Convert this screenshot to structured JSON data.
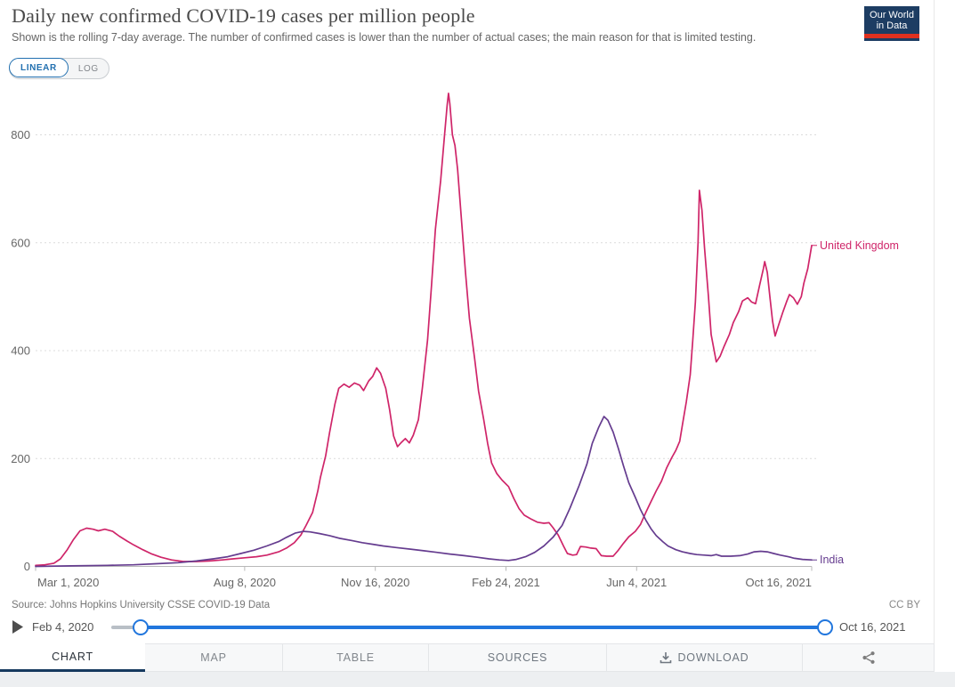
{
  "header": {
    "title": "Daily new confirmed COVID-19 cases per million people",
    "subtitle": "Shown is the rolling 7-day average. The number of confirmed cases is lower than the number of actual cases; the main reason for that is limited testing.",
    "logo": {
      "line1": "Our World",
      "line2": "in Data"
    }
  },
  "controls": {
    "linear_label": "LINEAR",
    "log_label": "LOG"
  },
  "chart_data": {
    "type": "line",
    "title": "Daily new confirmed COVID-19 cases per million people",
    "xlabel": "",
    "ylabel": "",
    "x_domain_days": [
      0,
      594
    ],
    "x_domain_dates": [
      "Mar 1, 2020",
      "Oct 16, 2021"
    ],
    "ylim": [
      0,
      900
    ],
    "grid": "horizontal-dotted",
    "legend_position": "right-end-labels",
    "y_ticks": [
      0,
      200,
      400,
      600,
      800
    ],
    "x_ticks": [
      {
        "label": "Mar 1, 2020",
        "day": 0,
        "align": "start"
      },
      {
        "label": "Aug 8, 2020",
        "day": 160,
        "align": "middle"
      },
      {
        "label": "Nov 16, 2020",
        "day": 260,
        "align": "middle"
      },
      {
        "label": "Feb 24, 2021",
        "day": 360,
        "align": "middle"
      },
      {
        "label": "Jun 4, 2021",
        "day": 460,
        "align": "middle"
      },
      {
        "label": "Oct 16, 2021",
        "day": 594,
        "align": "end"
      }
    ],
    "series": [
      {
        "name": "United Kingdom",
        "color": "#cf2569",
        "points": [
          [
            0,
            2
          ],
          [
            7,
            3
          ],
          [
            14,
            6
          ],
          [
            19,
            14
          ],
          [
            24,
            30
          ],
          [
            29,
            50
          ],
          [
            34,
            66
          ],
          [
            39,
            71
          ],
          [
            44,
            69
          ],
          [
            48,
            66
          ],
          [
            53,
            69
          ],
          [
            59,
            65
          ],
          [
            64,
            56
          ],
          [
            70,
            47
          ],
          [
            75,
            40
          ],
          [
            82,
            31
          ],
          [
            89,
            23
          ],
          [
            96,
            17
          ],
          [
            104,
            12
          ],
          [
            113,
            9
          ],
          [
            123,
            9
          ],
          [
            133,
            10
          ],
          [
            143,
            12
          ],
          [
            151,
            14
          ],
          [
            160,
            16
          ],
          [
            169,
            18
          ],
          [
            177,
            21
          ],
          [
            186,
            27
          ],
          [
            192,
            34
          ],
          [
            198,
            44
          ],
          [
            203,
            58
          ],
          [
            207,
            76
          ],
          [
            212,
            100
          ],
          [
            216,
            140
          ],
          [
            218,
            165
          ],
          [
            222,
            205
          ],
          [
            225,
            248
          ],
          [
            229,
            300
          ],
          [
            232,
            330
          ],
          [
            236,
            338
          ],
          [
            240,
            332
          ],
          [
            244,
            340
          ],
          [
            248,
            336
          ],
          [
            251,
            326
          ],
          [
            255,
            344
          ],
          [
            258,
            352
          ],
          [
            261,
            368
          ],
          [
            264,
            358
          ],
          [
            268,
            330
          ],
          [
            271,
            290
          ],
          [
            274,
            242
          ],
          [
            277,
            222
          ],
          [
            280,
            230
          ],
          [
            283,
            237
          ],
          [
            286,
            229
          ],
          [
            289,
            243
          ],
          [
            293,
            272
          ],
          [
            296,
            330
          ],
          [
            300,
            420
          ],
          [
            303,
            520
          ],
          [
            306,
            625
          ],
          [
            310,
            715
          ],
          [
            313,
            800
          ],
          [
            315,
            855
          ],
          [
            316,
            877
          ],
          [
            317,
            858
          ],
          [
            319,
            800
          ],
          [
            321,
            780
          ],
          [
            323,
            735
          ],
          [
            326,
            640
          ],
          [
            329,
            545
          ],
          [
            332,
            460
          ],
          [
            336,
            385
          ],
          [
            339,
            325
          ],
          [
            343,
            272
          ],
          [
            346,
            228
          ],
          [
            349,
            192
          ],
          [
            353,
            172
          ],
          [
            357,
            160
          ],
          [
            362,
            148
          ],
          [
            366,
            126
          ],
          [
            370,
            107
          ],
          [
            374,
            95
          ],
          [
            379,
            88
          ],
          [
            384,
            82
          ],
          [
            389,
            80
          ],
          [
            393,
            81
          ],
          [
            396,
            72
          ],
          [
            400,
            58
          ],
          [
            404,
            38
          ],
          [
            407,
            24
          ],
          [
            411,
            21
          ],
          [
            414,
            22
          ],
          [
            417,
            37
          ],
          [
            421,
            36
          ],
          [
            425,
            34
          ],
          [
            429,
            33
          ],
          [
            433,
            20
          ],
          [
            437,
            19
          ],
          [
            442,
            19
          ],
          [
            446,
            30
          ],
          [
            450,
            43
          ],
          [
            454,
            55
          ],
          [
            459,
            65
          ],
          [
            463,
            78
          ],
          [
            467,
            100
          ],
          [
            471,
            120
          ],
          [
            475,
            140
          ],
          [
            479,
            158
          ],
          [
            483,
            183
          ],
          [
            487,
            202
          ],
          [
            490,
            215
          ],
          [
            493,
            232
          ],
          [
            495,
            262
          ],
          [
            498,
            305
          ],
          [
            501,
            355
          ],
          [
            503,
            420
          ],
          [
            505,
            490
          ],
          [
            507,
            600
          ],
          [
            508,
            697
          ],
          [
            510,
            660
          ],
          [
            512,
            590
          ],
          [
            515,
            500
          ],
          [
            517,
            430
          ],
          [
            521,
            379
          ],
          [
            524,
            390
          ],
          [
            527,
            408
          ],
          [
            531,
            430
          ],
          [
            534,
            452
          ],
          [
            538,
            472
          ],
          [
            541,
            492
          ],
          [
            545,
            498
          ],
          [
            548,
            490
          ],
          [
            551,
            487
          ],
          [
            554,
            520
          ],
          [
            557,
            552
          ],
          [
            558,
            565
          ],
          [
            560,
            545
          ],
          [
            562,
            500
          ],
          [
            564,
            455
          ],
          [
            566,
            427
          ],
          [
            569,
            450
          ],
          [
            572,
            472
          ],
          [
            575,
            492
          ],
          [
            577,
            504
          ],
          [
            580,
            498
          ],
          [
            583,
            486
          ],
          [
            586,
            500
          ],
          [
            588,
            525
          ],
          [
            591,
            552
          ],
          [
            594,
            595
          ]
        ]
      },
      {
        "name": "India",
        "color": "#653c8f",
        "points": [
          [
            0,
            0
          ],
          [
            27,
            1
          ],
          [
            55,
            2
          ],
          [
            75,
            3
          ],
          [
            92,
            5
          ],
          [
            109,
            7
          ],
          [
            123,
            10
          ],
          [
            136,
            14
          ],
          [
            147,
            18
          ],
          [
            157,
            24
          ],
          [
            167,
            30
          ],
          [
            177,
            38
          ],
          [
            186,
            46
          ],
          [
            192,
            54
          ],
          [
            199,
            62
          ],
          [
            205,
            65
          ],
          [
            210,
            64
          ],
          [
            217,
            61
          ],
          [
            225,
            57
          ],
          [
            233,
            52
          ],
          [
            242,
            48
          ],
          [
            250,
            44
          ],
          [
            258,
            41
          ],
          [
            266,
            38
          ],
          [
            276,
            35
          ],
          [
            287,
            32
          ],
          [
            297,
            29
          ],
          [
            307,
            26
          ],
          [
            317,
            23
          ],
          [
            328,
            20
          ],
          [
            338,
            17
          ],
          [
            347,
            14
          ],
          [
            355,
            12
          ],
          [
            362,
            11
          ],
          [
            368,
            13
          ],
          [
            375,
            18
          ],
          [
            382,
            26
          ],
          [
            389,
            38
          ],
          [
            396,
            54
          ],
          [
            403,
            76
          ],
          [
            409,
            108
          ],
          [
            416,
            150
          ],
          [
            422,
            190
          ],
          [
            426,
            228
          ],
          [
            431,
            258
          ],
          [
            435,
            278
          ],
          [
            438,
            271
          ],
          [
            442,
            249
          ],
          [
            446,
            219
          ],
          [
            450,
            186
          ],
          [
            454,
            155
          ],
          [
            459,
            128
          ],
          [
            463,
            105
          ],
          [
            467,
            86
          ],
          [
            471,
            70
          ],
          [
            475,
            57
          ],
          [
            480,
            46
          ],
          [
            484,
            38
          ],
          [
            490,
            31
          ],
          [
            495,
            27
          ],
          [
            501,
            24
          ],
          [
            506,
            22
          ],
          [
            512,
            21
          ],
          [
            517,
            20
          ],
          [
            521,
            22
          ],
          [
            525,
            19
          ],
          [
            532,
            19
          ],
          [
            539,
            20
          ],
          [
            545,
            23
          ],
          [
            550,
            27
          ],
          [
            555,
            28
          ],
          [
            560,
            27
          ],
          [
            565,
            24
          ],
          [
            570,
            21
          ],
          [
            576,
            18
          ],
          [
            581,
            15
          ],
          [
            587,
            13
          ],
          [
            594,
            12
          ]
        ]
      }
    ]
  },
  "footer": {
    "source": "Source: Johns Hopkins University CSSE COVID-19 Data",
    "license": "CC BY"
  },
  "timeline": {
    "start_label": "Feb 4, 2020",
    "end_label": "Oct 16, 2021"
  },
  "tabs": [
    {
      "label": "CHART",
      "active": true
    },
    {
      "label": "MAP"
    },
    {
      "label": "TABLE"
    },
    {
      "label": "SOURCES"
    },
    {
      "label": "DOWNLOAD",
      "icon": "download-icon"
    },
    {
      "label": "",
      "icon": "share-icon"
    }
  ]
}
